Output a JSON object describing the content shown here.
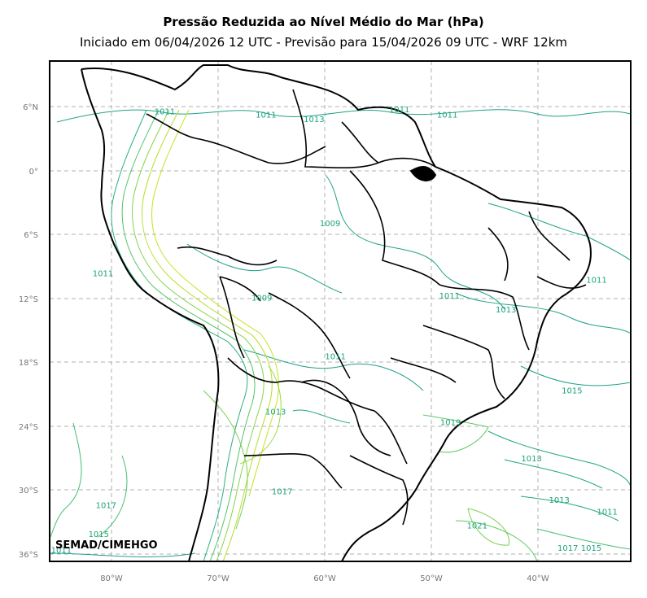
{
  "title": "Pressão Reduzida ao Nível Médio do Mar (hPa)",
  "subtitle": "Iniciado em 06/04/2026 12 UTC - Previsão para 15/04/2026 09 UTC - WRF 12km",
  "credit": "SEMAD/CIMEHGO",
  "lat_ticks": [
    "6°N",
    "0°",
    "6°S",
    "12°S",
    "18°S",
    "24°S",
    "30°S",
    "36°S"
  ],
  "lon_ticks": [
    "80°W",
    "70°W",
    "60°W",
    "50°W",
    "40°W"
  ],
  "isobar_labels": [
    {
      "text": "1011",
      "lon": -65.5,
      "lat": 5.0
    },
    {
      "text": "1013",
      "lon": -61.0,
      "lat": 4.6
    },
    {
      "text": "1011",
      "lon": -53.0,
      "lat": 5.5
    },
    {
      "text": "1011",
      "lon": -48.5,
      "lat": 5.0
    },
    {
      "text": "1011",
      "lon": -75.0,
      "lat": 5.3
    },
    {
      "text": "1011",
      "lon": -80.8,
      "lat": -9.9
    },
    {
      "text": "1009",
      "lon": -59.5,
      "lat": -5.2
    },
    {
      "text": "1009",
      "lon": -65.9,
      "lat": -12.2
    },
    {
      "text": "1011",
      "lon": -48.3,
      "lat": -12.0
    },
    {
      "text": "1013",
      "lon": -43.0,
      "lat": -13.3
    },
    {
      "text": "1011",
      "lon": -34.5,
      "lat": -10.5
    },
    {
      "text": "1011",
      "lon": -59.0,
      "lat": -17.7
    },
    {
      "text": "1013",
      "lon": -64.6,
      "lat": -22.9
    },
    {
      "text": "1015",
      "lon": -36.8,
      "lat": -20.9
    },
    {
      "text": "1019",
      "lon": -48.2,
      "lat": -23.9
    },
    {
      "text": "1013",
      "lon": -40.6,
      "lat": -27.3
    },
    {
      "text": "1017",
      "lon": -64.0,
      "lat": -30.4
    },
    {
      "text": "1017",
      "lon": -80.5,
      "lat": -31.7
    },
    {
      "text": "1013",
      "lon": -38.0,
      "lat": -31.2
    },
    {
      "text": "1011",
      "lon": -33.5,
      "lat": -32.3
    },
    {
      "text": "1021",
      "lon": -45.7,
      "lat": -33.6
    },
    {
      "text": "1015",
      "lon": -81.2,
      "lat": -34.4
    },
    {
      "text": "1011",
      "lon": -84.7,
      "lat": -35.9
    },
    {
      "text": "1017",
      "lon": -37.2,
      "lat": -35.7
    },
    {
      "text": "1015",
      "lon": -35.0,
      "lat": -35.7
    }
  ]
}
